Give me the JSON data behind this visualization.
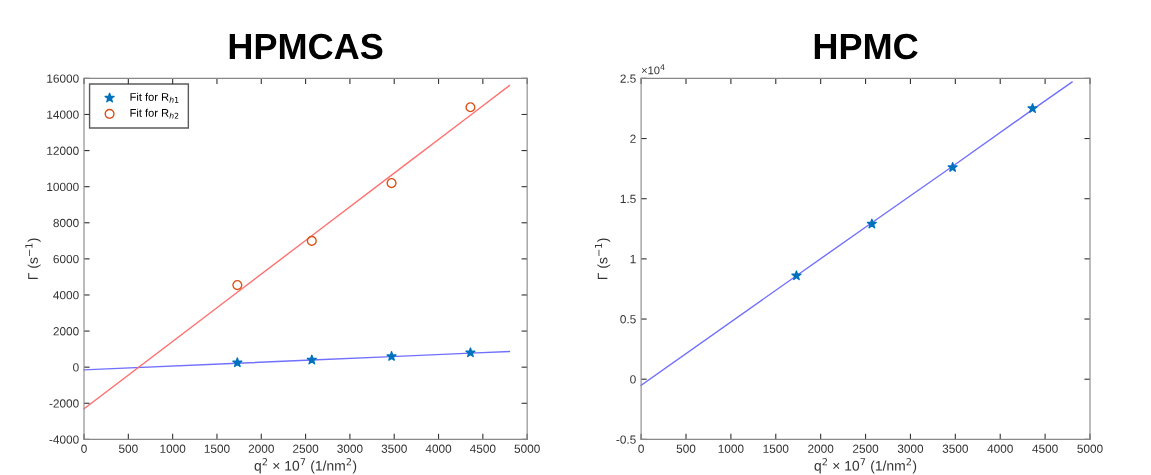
{
  "chart_data": [
    {
      "type": "scatter",
      "title": "HPMCAS",
      "xlabel": "q$^{2}$ × 10$^{7}$ (1/nm$^{2}$)",
      "ylabel": "Γ (s$^{−1}$)",
      "x": [
        0,
        1730,
        2570,
        3470,
        4360,
        4800
      ],
      "series": [
        {
          "name": "Fit for R$_{h1}$",
          "color": "#0072bd",
          "marker": "star",
          "values": [
            null,
            250,
            400,
            600,
            800,
            null
          ]
        },
        {
          "name": "Fit for R$_{h2}$",
          "color": "#d95319",
          "marker": "circle",
          "values": [
            null,
            4550,
            7000,
            10200,
            14400,
            null
          ]
        },
        {
          "type": "line",
          "color": "#7070ff",
          "values": [
            -150,
            218,
            396,
            587,
            777,
            870
          ]
        },
        {
          "type": "line",
          "color": "#ff7070",
          "values": [
            -2300,
            4150,
            7280,
            10640,
            13960,
            15600
          ]
        }
      ],
      "xlim": [
        0,
        5000
      ],
      "xticks": [
        0,
        500,
        1000,
        1500,
        2000,
        2500,
        3000,
        3500,
        4000,
        4500,
        5000
      ],
      "ylim": [
        -4000,
        16000
      ],
      "yticks": [
        -4000,
        -2000,
        0,
        2000,
        4000,
        6000,
        8000,
        10000,
        12000,
        14000,
        16000
      ],
      "grid": false,
      "legend": "top left"
    },
    {
      "type": "scatter",
      "title": "HPMC",
      "xlabel": "q$^{2}$ × 10$^{7}$ (1/nm$^{2}$)",
      "ylabel": "Γ (s$^{−1}$)",
      "annotations": [
        "×10$^{4}$"
      ],
      "x": [
        0,
        1730,
        2570,
        3470,
        4360,
        4800
      ],
      "series": [
        {
          "color": "#0072bd",
          "marker": "star",
          "values": [
            null,
            0.86,
            1.29,
            1.76,
            2.25,
            null
          ]
        },
        {
          "type": "line",
          "color": "#7070ff",
          "values": [
            -0.05,
            0.86,
            1.3,
            1.77,
            2.24,
            2.47
          ]
        }
      ],
      "xlim": [
        0,
        5000
      ],
      "xticks": [
        0,
        500,
        1000,
        1500,
        2000,
        2500,
        3000,
        3500,
        4000,
        4500,
        5000
      ],
      "ylim": [
        -0.5,
        2.5
      ],
      "yticks": [
        -0.5,
        0,
        0.5,
        1,
        1.5,
        2,
        2.5
      ],
      "grid": false
    }
  ]
}
